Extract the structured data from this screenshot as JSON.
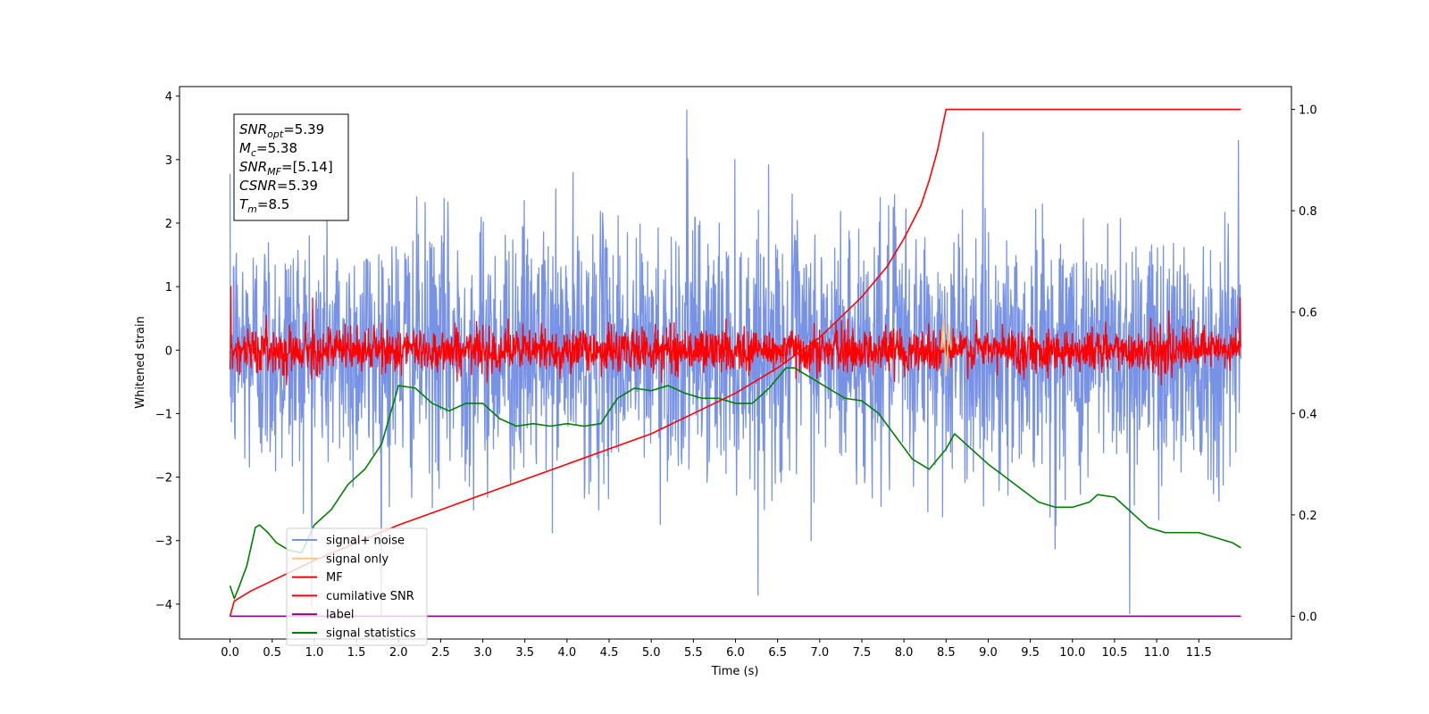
{
  "chart_data": {
    "type": "line",
    "xlabel": "Time (s)",
    "ylabel": "Whitened strain",
    "xlim": [
      -0.6,
      12.6
    ],
    "ylim": [
      -4.55,
      4.15
    ],
    "y2lim": [
      -0.045,
      1.045
    ],
    "x_ticks": [
      "0.0",
      "0.5",
      "1.0",
      "1.5",
      "2.0",
      "2.5",
      "3.0",
      "3.5",
      "4.0",
      "4.5",
      "5.0",
      "5.5",
      "6.0",
      "6.5",
      "7.0",
      "7.5",
      "8.0",
      "8.5",
      "9.0",
      "9.5",
      "10.0",
      "10.5",
      "11.0",
      "11.5"
    ],
    "y_ticks": [
      "4",
      "3",
      "2",
      "1",
      "0",
      "−1",
      "−2",
      "−3",
      "−4"
    ],
    "y2_ticks": [
      "0.0",
      "0.2",
      "0.4",
      "0.6",
      "0.8",
      "1.0"
    ],
    "legend_location": "lower-left",
    "annotation": [
      {
        "base": "SNR",
        "sub": "opt",
        "value": "=5.39"
      },
      {
        "base": "M",
        "sub": "c",
        "value": "=5.38"
      },
      {
        "base": "SNR",
        "sub": "MF",
        "value": "=[5.14]"
      },
      {
        "base": "CSNR",
        "sub": "",
        "value": "=5.39"
      },
      {
        "base": "T",
        "sub": "m",
        "value": "=8.5"
      }
    ],
    "series": [
      {
        "name": "signal+ noise",
        "axis": "left",
        "color": "#7893e6",
        "noise": {
          "x_start": 0.0,
          "x_end": 12.0,
          "std": 1.0,
          "mean": 0.0,
          "points": 2400,
          "peaks": [
            [
              5.42,
              3.78
            ],
            [
              10.68,
              -4.15
            ],
            [
              11.97,
              3.3
            ]
          ]
        }
      },
      {
        "name": "signal only",
        "axis": "left",
        "color": "#f9c97a",
        "x": [
          8.44,
          8.47,
          8.5,
          8.53,
          8.56
        ],
        "y": [
          0.0,
          0.5,
          -0.4,
          0.4,
          0.0
        ]
      },
      {
        "name": "MF",
        "axis": "left",
        "color": "#ff0000",
        "noise": {
          "x_start": 0.0,
          "x_end": 12.0,
          "std": 0.17,
          "mean": 0.0,
          "points": 2400,
          "peaks": [
            [
              0.01,
              1.0
            ],
            [
              0.98,
              0.82
            ],
            [
              11.99,
              0.82
            ]
          ]
        }
      },
      {
        "name": "cumilative SNR",
        "axis": "right",
        "color": "#ff0000",
        "x": [
          0.0,
          0.05,
          0.25,
          0.5,
          1.0,
          1.5,
          2.0,
          2.5,
          3.0,
          3.5,
          4.0,
          4.5,
          5.0,
          5.5,
          6.0,
          6.5,
          7.0,
          7.5,
          7.8,
          8.0,
          8.2,
          8.3,
          8.4,
          8.45,
          8.5,
          9.0,
          10.0,
          11.0,
          12.0
        ],
        "y": [
          0.0,
          0.03,
          0.05,
          0.07,
          0.11,
          0.145,
          0.18,
          0.21,
          0.24,
          0.27,
          0.3,
          0.33,
          0.36,
          0.4,
          0.44,
          0.49,
          0.55,
          0.63,
          0.69,
          0.745,
          0.81,
          0.86,
          0.92,
          0.96,
          1.0,
          1.0,
          1.0,
          1.0,
          1.0
        ]
      },
      {
        "name": "label",
        "axis": "right",
        "color": "#800080",
        "x": [
          0.0,
          12.0
        ],
        "y": [
          0.0,
          0.0
        ]
      },
      {
        "name": "signal statistics",
        "axis": "right",
        "color": "#008000",
        "x": [
          0.0,
          0.05,
          0.1,
          0.2,
          0.3,
          0.35,
          0.45,
          0.55,
          0.7,
          0.85,
          1.0,
          1.2,
          1.4,
          1.6,
          1.8,
          2.0,
          2.2,
          2.4,
          2.6,
          2.8,
          3.0,
          3.2,
          3.4,
          3.6,
          3.8,
          4.0,
          4.2,
          4.4,
          4.6,
          4.8,
          5.0,
          5.2,
          5.4,
          5.6,
          5.8,
          6.0,
          6.2,
          6.4,
          6.6,
          6.7,
          6.9,
          7.1,
          7.3,
          7.5,
          7.7,
          7.9,
          8.1,
          8.3,
          8.4,
          8.5,
          8.6,
          8.8,
          9.0,
          9.2,
          9.4,
          9.6,
          9.8,
          10.0,
          10.2,
          10.3,
          10.5,
          10.7,
          10.9,
          11.1,
          11.3,
          11.5,
          11.7,
          11.9,
          12.0
        ],
        "y": [
          0.06,
          0.035,
          0.055,
          0.1,
          0.175,
          0.18,
          0.165,
          0.145,
          0.13,
          0.125,
          0.18,
          0.21,
          0.26,
          0.29,
          0.34,
          0.455,
          0.45,
          0.42,
          0.405,
          0.42,
          0.42,
          0.39,
          0.375,
          0.38,
          0.375,
          0.38,
          0.375,
          0.38,
          0.43,
          0.45,
          0.445,
          0.455,
          0.44,
          0.43,
          0.43,
          0.42,
          0.42,
          0.45,
          0.49,
          0.49,
          0.47,
          0.45,
          0.43,
          0.425,
          0.4,
          0.355,
          0.31,
          0.29,
          0.31,
          0.33,
          0.36,
          0.33,
          0.3,
          0.275,
          0.25,
          0.225,
          0.215,
          0.215,
          0.225,
          0.24,
          0.235,
          0.205,
          0.175,
          0.165,
          0.165,
          0.165,
          0.155,
          0.145,
          0.135
        ]
      }
    ]
  }
}
